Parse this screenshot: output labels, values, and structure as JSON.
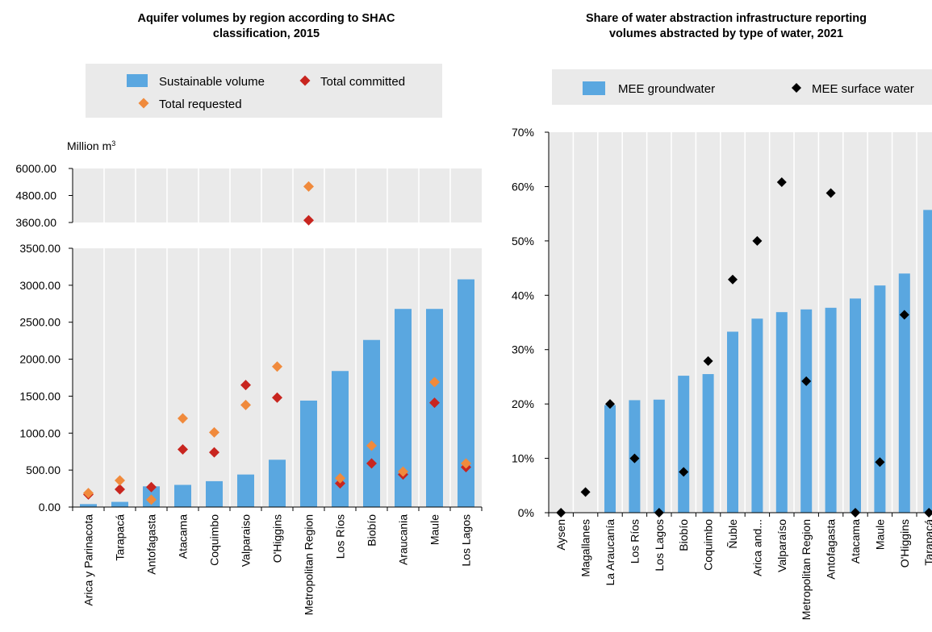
{
  "chart_data": [
    {
      "type": "bar",
      "title_line1": "Aquifer volumes by region according to SHAC",
      "title_line2": "classification, 2015",
      "ylabel": "Million m",
      "ylabel_sup": "3",
      "broken_axis": true,
      "upper_ticks": [
        "6000.00",
        "4800.00",
        "3600.00"
      ],
      "upper_ylim": [
        3600,
        6000
      ],
      "lower_ticks": [
        "3500.00",
        "3000.00",
        "2500.00",
        "2000.00",
        "1500.00",
        "1000.00",
        "500.00",
        "0.00"
      ],
      "lower_ylim": [
        0,
        3500
      ],
      "legend_position": "top",
      "categories": [
        "Arica y Parinacota",
        "Tarapacá",
        "Antofagasta",
        "Atacama",
        "Coquimbo",
        "Valparaiso",
        "O'Higgins",
        "Metropolitan Region",
        "Los Ríos",
        "Biobío",
        "Araucania",
        "Maule",
        "Los Lagos"
      ],
      "series": [
        {
          "name": "Sustainable volume",
          "kind": "bar",
          "color": "#5aa7e0",
          "values": [
            40,
            70,
            280,
            300,
            350,
            440,
            640,
            1440,
            1840,
            2260,
            2680,
            2680,
            3080
          ]
        },
        {
          "name": "Total committed",
          "kind": "diamond",
          "color": "#c8251f",
          "values": [
            170,
            240,
            270,
            780,
            740,
            1650,
            1480,
            3700,
            320,
            590,
            440,
            1410,
            540
          ]
        },
        {
          "name": "Total requested",
          "kind": "diamond",
          "color": "#f08a3c",
          "values": [
            190,
            360,
            100,
            1200,
            1010,
            1380,
            1900,
            5200,
            390,
            830,
            480,
            1690,
            590
          ]
        }
      ]
    },
    {
      "type": "bar",
      "title_line1": "Share of water abstraction infrastructure reporting",
      "title_line2": "volumes abstracted by type of water, 2021",
      "ylim": [
        0,
        70
      ],
      "yticks": [
        "0%",
        "10%",
        "20%",
        "30%",
        "40%",
        "50%",
        "60%",
        "70%"
      ],
      "legend_position": "top",
      "categories": [
        "Aysen",
        "Magallanes",
        "La Araucanía",
        "Los Ríos",
        "Los Lagos",
        "Biobío",
        "Coquimbo",
        "Ñuble",
        "Arica and...",
        "Valparaíso",
        "Metropolitan Region",
        "Antofagasta",
        "Atacama",
        "Maule",
        "O'Higgins",
        "Tarapacá"
      ],
      "series": [
        {
          "name": "MEE groundwater",
          "kind": "bar",
          "color": "#5aa7e0",
          "values": [
            0,
            0,
            19.8,
            20.7,
            20.8,
            25.2,
            25.5,
            33.3,
            35.7,
            36.9,
            37.4,
            37.7,
            39.4,
            41.8,
            44.0,
            55.7
          ]
        },
        {
          "name": "MEE surface water",
          "kind": "diamond",
          "color": "#000000",
          "values": [
            0,
            3.8,
            20.0,
            10.0,
            0,
            7.5,
            27.9,
            42.9,
            50.0,
            60.8,
            24.2,
            58.8,
            0,
            9.3,
            36.4,
            0
          ]
        }
      ]
    }
  ]
}
